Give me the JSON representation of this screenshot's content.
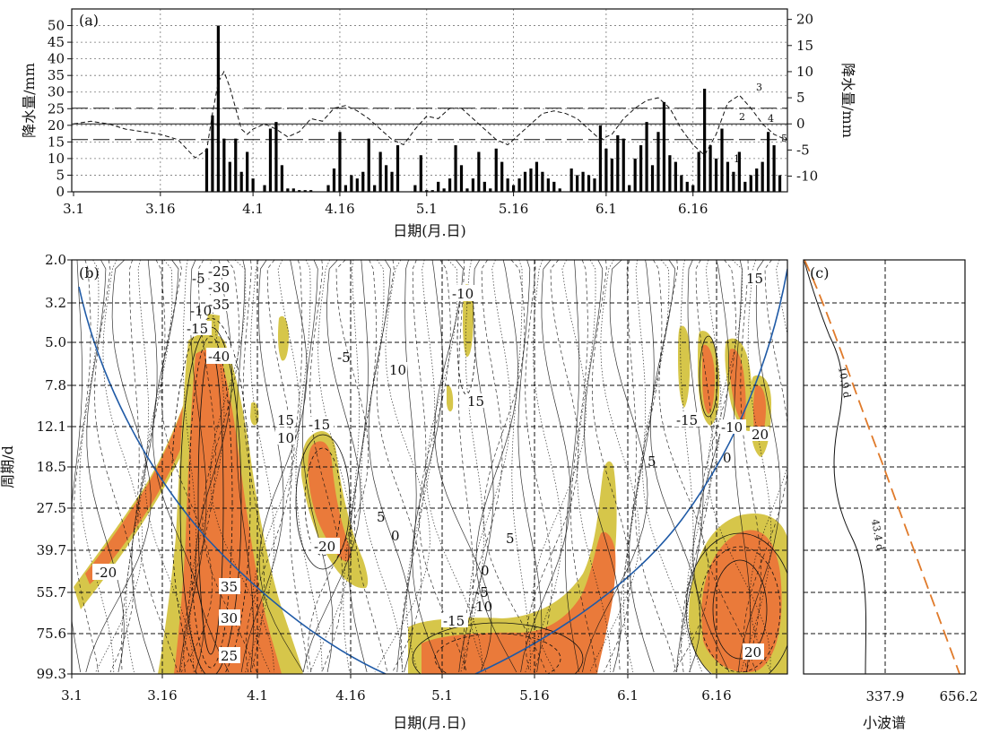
{
  "chart_data": [
    {
      "panel": "(a)",
      "type": "bar",
      "xlabel": "日期(月.日)",
      "ylabel": "降水量/mm",
      "ylabel_right": "降水量/mm",
      "xlim": [
        0,
        123
      ],
      "ylim": [
        0,
        55
      ],
      "ylim_right": [
        -13,
        22
      ],
      "x_ticks": [
        0,
        15,
        31,
        46,
        61,
        76,
        92,
        107
      ],
      "x_tick_labels": [
        "3.1",
        "3.16",
        "4.1",
        "4.16",
        "5.1",
        "5.16",
        "6.1",
        "6.16"
      ],
      "y_ticks": [
        0,
        5,
        10,
        15,
        20,
        25,
        30,
        35,
        40,
        45,
        50
      ],
      "y_ticks_right": [
        -10,
        -5,
        0,
        5,
        10,
        15,
        20
      ],
      "grid": "dotted",
      "series": [
        {
          "kind": "bar",
          "x": [
            23,
            24,
            25,
            26,
            27,
            28,
            29,
            30,
            31,
            33,
            34,
            35,
            36,
            37,
            38,
            39,
            40,
            41,
            44,
            45,
            46,
            47,
            48,
            49,
            50,
            51,
            52,
            53,
            54,
            55,
            56,
            59,
            60,
            61,
            62,
            63,
            64,
            65,
            66,
            67,
            68,
            69,
            70,
            71,
            72,
            73,
            74,
            75,
            76,
            77,
            78,
            79,
            80,
            81,
            82,
            83,
            84,
            86,
            87,
            88,
            89,
            90,
            91,
            92,
            93,
            94,
            95,
            96,
            97,
            98,
            99,
            100,
            101,
            102,
            103,
            104,
            105,
            106,
            107,
            108,
            109,
            110,
            111,
            112,
            113,
            114,
            115,
            116,
            117,
            118,
            119,
            120,
            121,
            122
          ],
          "values": [
            13,
            23,
            50,
            16,
            9,
            16,
            6,
            12,
            4,
            2,
            19,
            21,
            8,
            1,
            1,
            0.5,
            0.5,
            0.5,
            2,
            7,
            18,
            2,
            5,
            4,
            6,
            16,
            2,
            12,
            8,
            6,
            14,
            2,
            11,
            0.5,
            0.5,
            3,
            1,
            4,
            14,
            8,
            1,
            4,
            12,
            3,
            1,
            13,
            9,
            4,
            2,
            4,
            6,
            7,
            9,
            6,
            4,
            3,
            1,
            7,
            5,
            6,
            5,
            4,
            20,
            13,
            10,
            17,
            16,
            2,
            10,
            14,
            21,
            8,
            18,
            27,
            11,
            9,
            5,
            3,
            2,
            12,
            31,
            14,
            10,
            19,
            9,
            6,
            12,
            3,
            5,
            7,
            9,
            18,
            14,
            5
          ]
        },
        {
          "kind": "line",
          "style": "dashed",
          "axis": "right",
          "x": [
            0,
            3,
            6,
            9,
            12,
            15,
            18,
            21,
            23,
            24,
            25,
            26,
            27,
            28,
            29,
            30,
            31,
            33,
            35,
            37,
            39,
            41,
            43,
            45,
            47,
            49,
            51,
            53,
            55,
            57,
            59,
            61,
            63,
            65,
            67,
            69,
            71,
            73,
            75,
            77,
            79,
            81,
            83,
            85,
            87,
            89,
            91,
            93,
            95,
            97,
            99,
            101,
            103,
            105,
            107,
            109,
            111,
            113,
            115,
            117,
            119,
            121,
            123
          ],
          "values": [
            0,
            0.5,
            0,
            -1,
            -1.5,
            -2,
            -3,
            -6.5,
            -5,
            2,
            8,
            10,
            7,
            3,
            -1,
            -2,
            -1,
            0,
            -1,
            -2.5,
            -1.5,
            1,
            0.5,
            3,
            3.5,
            2.5,
            1,
            -1,
            -3,
            -4,
            -1,
            1.5,
            1,
            3,
            3,
            1,
            -1,
            -3,
            -4,
            -2,
            0,
            2,
            2.5,
            2,
            1,
            -1,
            -3,
            -2,
            1,
            3,
            4.5,
            5,
            3,
            -1,
            -4,
            -6,
            -2,
            4,
            5.5,
            3,
            0,
            -2,
            -3
          ]
        }
      ],
      "reference_lines_right": [
        {
          "y": 3,
          "style": "dashed",
          "label": ""
        },
        {
          "y": 0,
          "style": "solid",
          "label": ""
        },
        {
          "y": -3,
          "style": "dashed",
          "label": ""
        }
      ],
      "annotations": [
        "1",
        "2",
        "3",
        "4",
        "5"
      ]
    },
    {
      "panel": "(b)",
      "type": "heatmap",
      "title": "",
      "xlabel": "日期(月.日)",
      "ylabel": "周期/d",
      "x_tick_labels": [
        "3.1",
        "3.16",
        "4.1",
        "4.16",
        "5.1",
        "5.16",
        "6.1",
        "6.16"
      ],
      "y_tick_labels": [
        "2.0",
        "3.2",
        "5.0",
        "7.8",
        "12.1",
        "18.5",
        "27.5",
        "39.7",
        "55.7",
        "75.6",
        "99.3"
      ],
      "y_scale": "log",
      "contour_labels": [
        "-20",
        "35",
        "30",
        "25",
        "-40",
        "-35",
        "-30",
        "-25",
        "-15",
        "-5",
        "-10",
        "15",
        "10",
        "-20",
        "-15",
        "5",
        "0",
        "10",
        "-10",
        "-5",
        "5",
        "0",
        "-5",
        "-15",
        "-10",
        "15",
        "5",
        "-15",
        "20",
        "-10",
        "20",
        "15",
        "0"
      ],
      "fill_colors": {
        "significant_low": "#d6c64a",
        "significant_high": "#ea7a3a"
      },
      "cone_of_influence_color": "#1f5aa6"
    },
    {
      "panel": "(c)",
      "type": "line",
      "xlabel": "小波谱",
      "x_tick_labels": [
        "337.9",
        "656.2"
      ],
      "xlim": [
        0,
        656.2
      ],
      "series": [
        {
          "name": "",
          "style": "solid",
          "color": "#111111"
        },
        {
          "name": "",
          "style": "dashed",
          "color": "#e07a2a"
        }
      ],
      "annotations": [
        "10.9 d",
        "43.4 d"
      ]
    }
  ]
}
